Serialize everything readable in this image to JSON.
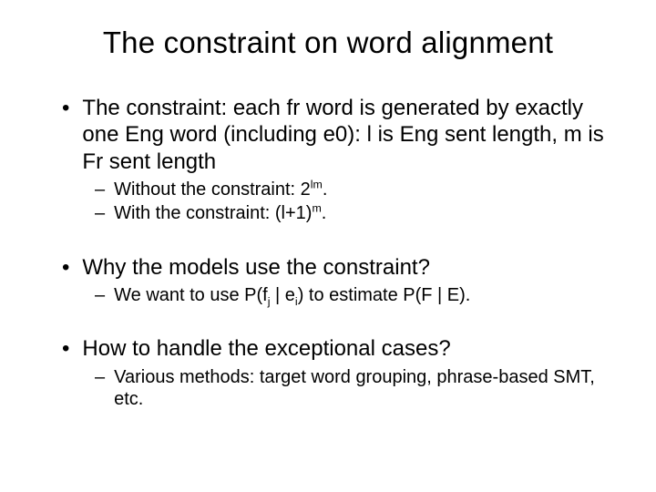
{
  "title": "The constraint on word alignment",
  "bullets": {
    "b1": "The constraint: each fr word is generated by exactly one Eng word (including e0): l is Eng sent length, m is Fr sent length",
    "b1s1_pre": "Without the constraint: 2",
    "b1s1_sup": "lm",
    "b1s1_post": ".",
    "b1s2_pre": "With the constraint: (l+1)",
    "b1s2_sup": "m",
    "b1s2_post": ".",
    "b2": "Why the models use the constraint?",
    "b2s1_a": "We want to use P(f",
    "b2s1_subj": "j",
    "b2s1_b": " | e",
    "b2s1_subi": "i",
    "b2s1_c": ") to estimate P(F | E).",
    "b3": "How to handle the exceptional cases?",
    "b3s1": "Various methods: target word grouping, phrase-based SMT, etc."
  },
  "colors": {
    "text": "#000000",
    "background": "#ffffff"
  },
  "fonts": {
    "title_size": 33,
    "main_size": 24,
    "sub_size": 20
  }
}
